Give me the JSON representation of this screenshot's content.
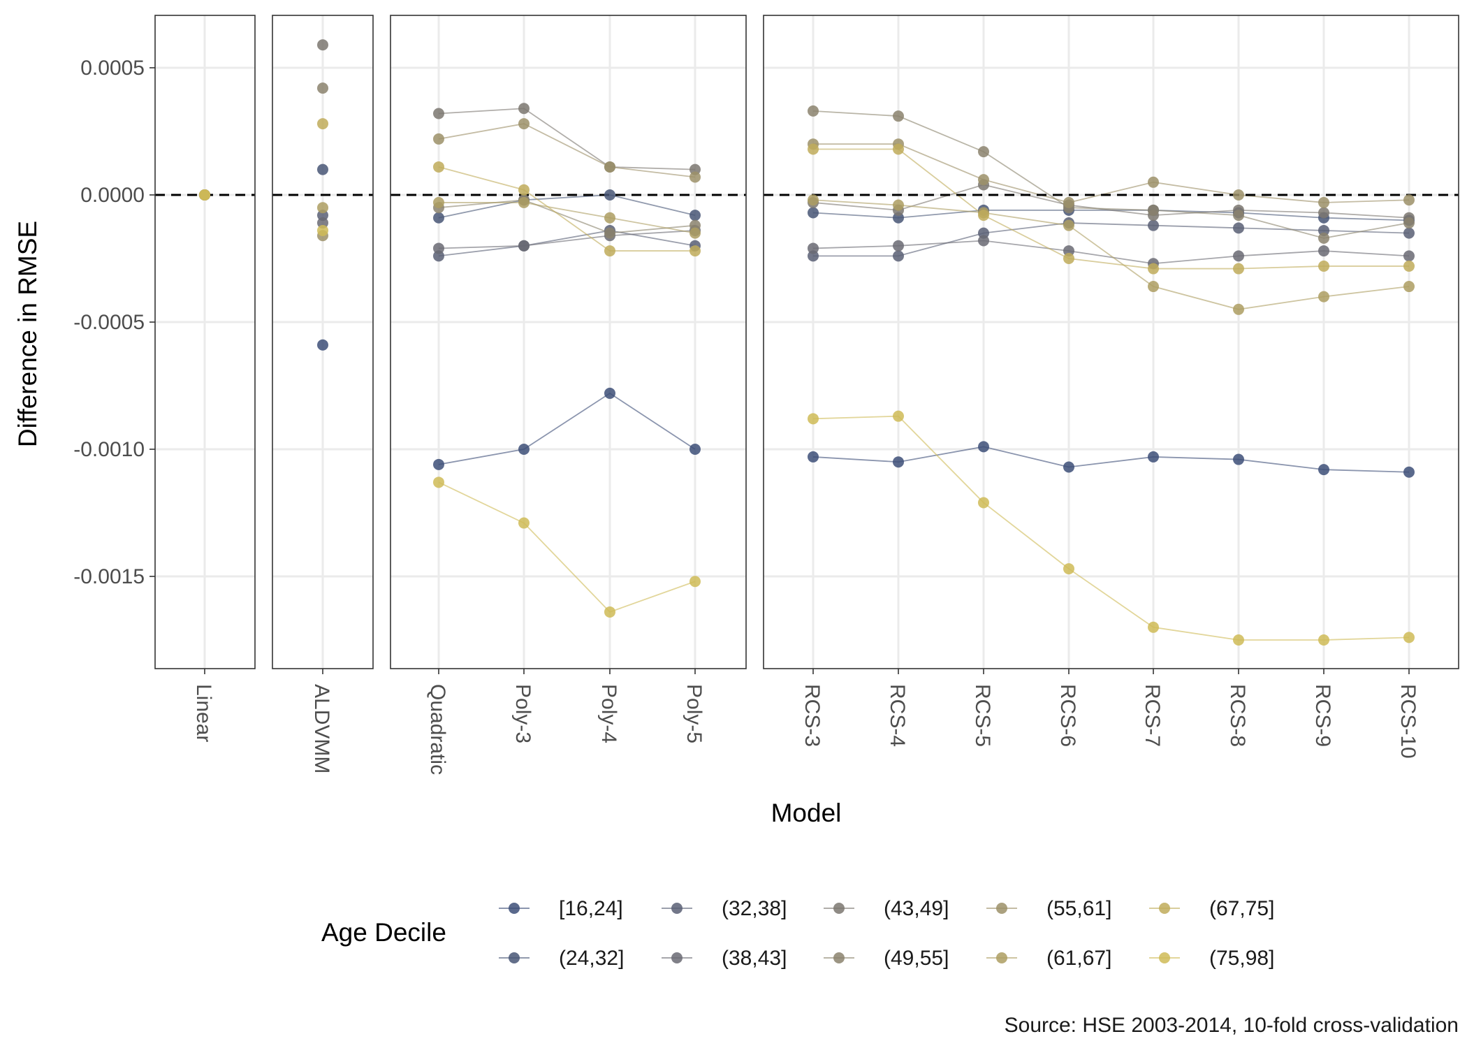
{
  "chart_data": {
    "type": "line",
    "ylabel": "Difference in RMSE",
    "xlabel": "Model",
    "caption": "Source: HSE 2003-2014, 10-fold cross-validation",
    "yticks": [
      0.0005,
      0.0,
      -0.0005,
      -0.001,
      -0.0015
    ],
    "ytick_labels": [
      "0.0005",
      "0.0000",
      "-0.0005",
      "-0.0010",
      "-0.0015"
    ],
    "ylim": [
      -0.00186,
      0.0007
    ],
    "reference_line": 0,
    "grid": true,
    "legend_position": "bottom",
    "legend": {
      "title": "Age Decile",
      "items": [
        "[16,24]",
        "(24,32]",
        "(32,38]",
        "(38,43]",
        "(43,49]",
        "(49,55]",
        "(55,61]",
        "(61,67]",
        "(67,75]",
        "(75,98]"
      ]
    },
    "panels": [
      {
        "name": "linear",
        "categories": [
          "Linear"
        ]
      },
      {
        "name": "aldvmm",
        "categories": [
          "ALDVMM"
        ]
      },
      {
        "name": "poly",
        "categories": [
          "Quadratic",
          "Poly-3",
          "Poly-4",
          "Poly-5"
        ]
      },
      {
        "name": "rcs",
        "categories": [
          "RCS-3",
          "RCS-4",
          "RCS-5",
          "RCS-6",
          "RCS-7",
          "RCS-8",
          "RCS-9",
          "RCS-10"
        ]
      }
    ],
    "series": [
      {
        "name": "[16,24]",
        "color": "#3d4f78",
        "linear": [
          0.0
        ],
        "aldvmm": [
          -0.00059
        ],
        "poly": [
          -0.00106,
          -0.001,
          -0.00078,
          -0.001
        ],
        "rcs": [
          -0.00103,
          -0.00105,
          -0.00099,
          -0.00107,
          -0.00103,
          -0.00104,
          -0.00108,
          -0.00109
        ]
      },
      {
        "name": "(24,32]",
        "color": "#485676",
        "linear": [
          0.0
        ],
        "aldvmm": [
          0.0001
        ],
        "poly": [
          -9e-05,
          -2e-05,
          0.0,
          -8e-05
        ],
        "rcs": [
          -7e-05,
          -9e-05,
          -6e-05,
          -6e-05,
          -6e-05,
          -7e-05,
          -9e-05,
          -0.0001
        ]
      },
      {
        "name": "(32,38]",
        "color": "#595f74",
        "linear": [
          0.0
        ],
        "aldvmm": [
          -8e-05
        ],
        "poly": [
          -0.00024,
          -0.0002,
          -0.00014,
          -0.0002
        ],
        "rcs": [
          -0.00024,
          -0.00024,
          -0.00015,
          -0.00011,
          -0.00012,
          -0.00013,
          -0.00014,
          -0.00015
        ]
      },
      {
        "name": "(38,43]",
        "color": "#6a6a73",
        "linear": [
          0.0
        ],
        "aldvmm": [
          -0.00011
        ],
        "poly": [
          -0.00021,
          -0.0002,
          -0.00016,
          -0.00014
        ],
        "rcs": [
          -0.00021,
          -0.0002,
          -0.00018,
          -0.00022,
          -0.00027,
          -0.00024,
          -0.00022,
          -0.00024
        ]
      },
      {
        "name": "(43,49]",
        "color": "#7b7770",
        "linear": [
          0.0
        ],
        "aldvmm": [
          0.00059
        ],
        "poly": [
          0.00032,
          0.00034,
          0.00011,
          0.0001
        ],
        "rcs": [
          -3e-05,
          -6e-05,
          4e-05,
          -4e-05,
          -8e-05,
          -6e-05,
          -7e-05,
          -9e-05
        ]
      },
      {
        "name": "(49,55]",
        "color": "#8b836d",
        "linear": [
          0.0
        ],
        "aldvmm": [
          0.00042
        ],
        "poly": [
          -5e-05,
          -2e-05,
          -0.00015,
          -0.00012
        ],
        "rcs": [
          0.00033,
          0.00031,
          0.00017,
          -5e-05,
          -6e-05,
          -8e-05,
          -0.00017,
          -0.00011
        ]
      },
      {
        "name": "(55,61]",
        "color": "#9c9068",
        "linear": [
          0.0
        ],
        "aldvmm": [
          -0.00016
        ],
        "poly": [
          0.00022,
          0.00028,
          0.00011,
          7e-05
        ],
        "rcs": [
          0.0002,
          0.0002,
          6e-05,
          -3e-05,
          5e-05,
          0.0,
          -3e-05,
          -2e-05
        ]
      },
      {
        "name": "(61,67]",
        "color": "#ad9e62",
        "linear": [
          0.0
        ],
        "aldvmm": [
          -5e-05
        ],
        "poly": [
          -3e-05,
          -3e-05,
          -9e-05,
          -0.00015
        ],
        "rcs": [
          -2e-05,
          -4e-05,
          -7e-05,
          -0.00012,
          -0.00036,
          -0.00045,
          -0.0004,
          -0.00036
        ]
      },
      {
        "name": "(67,75]",
        "color": "#bfac5a",
        "linear": [
          0.0
        ],
        "aldvmm": [
          0.00028
        ],
        "poly": [
          0.00011,
          2e-05,
          -0.00022,
          -0.00022
        ],
        "rcs": [
          0.00018,
          0.00018,
          -8e-05,
          -0.00025,
          -0.00029,
          -0.00029,
          -0.00028,
          -0.00028
        ]
      },
      {
        "name": "(75,98]",
        "color": "#cfbb57",
        "linear": [
          0.0
        ],
        "aldvmm": [
          -0.00014
        ],
        "poly": [
          -0.00113,
          -0.00129,
          -0.00164,
          -0.00152
        ],
        "rcs": [
          -0.00088,
          -0.00087,
          -0.00121,
          -0.00147,
          -0.0017,
          -0.00175,
          -0.00175,
          -0.00174
        ]
      }
    ]
  }
}
